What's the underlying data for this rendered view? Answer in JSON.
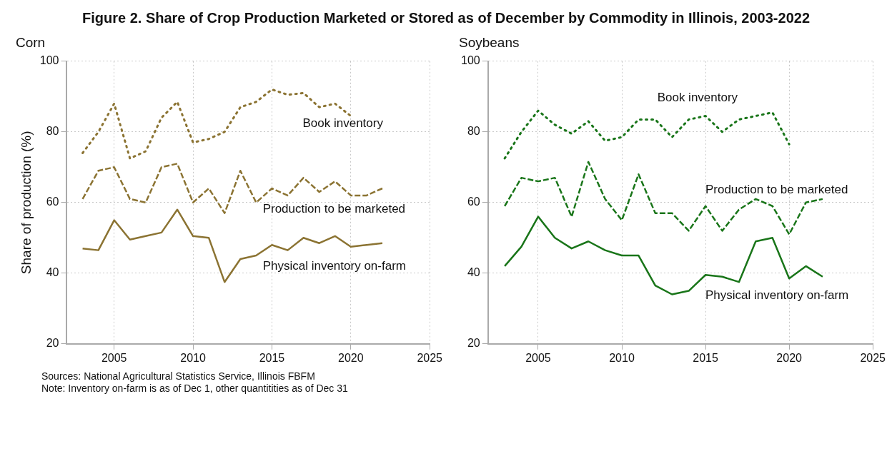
{
  "chart_data": [
    {
      "type": "other",
      "title": "Figure 2. Share of Crop Production Marketed or Stored as of December by Commodity in Illinois, 2003-2022"
    },
    {
      "type": "line",
      "title": "Corn",
      "ylabel": "Share of production (%)",
      "x": [
        2003,
        2004,
        2005,
        2006,
        2007,
        2008,
        2009,
        2010,
        2011,
        2012,
        2013,
        2014,
        2015,
        2016,
        2017,
        2018,
        2019,
        2020,
        2021,
        2022
      ],
      "series": [
        {
          "name": "Book inventory",
          "color": "#8b7332",
          "line_style": "dotted",
          "x": [
            2003,
            2004,
            2005,
            2006,
            2007,
            2008,
            2009,
            2010,
            2011,
            2012,
            2013,
            2014,
            2015,
            2016,
            2017,
            2018,
            2019,
            2020
          ],
          "values": [
            74,
            80,
            88,
            72.5,
            74.5,
            84,
            88.5,
            77,
            78,
            80,
            87,
            88.5,
            92,
            90.5,
            91,
            87,
            88,
            84.5
          ]
        },
        {
          "name": "Production to be marketed",
          "color": "#8b7332",
          "line_style": "dashed",
          "values": [
            61,
            69,
            70,
            61,
            60,
            70,
            71,
            60,
            64,
            57,
            69,
            60,
            64,
            62,
            67,
            63,
            66,
            62,
            62,
            64
          ]
        },
        {
          "name": "Physical inventory on-farm",
          "color": "#8b7332",
          "line_style": "solid",
          "values": [
            47,
            46.5,
            55,
            49.5,
            50.5,
            51.5,
            58,
            50.5,
            50,
            37.5,
            44,
            45,
            48,
            46.5,
            50,
            48.5,
            50.5,
            47.5,
            48,
            48.5
          ]
        }
      ],
      "xlim": [
        2002,
        2025
      ],
      "xticks": [
        2005,
        2010,
        2015,
        2020,
        2025
      ],
      "ylim": [
        20,
        100
      ],
      "yticks": [
        20,
        40,
        60,
        80,
        100
      ],
      "grid": true,
      "legend": false,
      "marker": "none"
    },
    {
      "type": "line",
      "title": "Soybeans",
      "x": [
        2003,
        2004,
        2005,
        2006,
        2007,
        2008,
        2009,
        2010,
        2011,
        2012,
        2013,
        2014,
        2015,
        2016,
        2017,
        2018,
        2019,
        2020,
        2021,
        2022
      ],
      "series": [
        {
          "name": "Book inventory",
          "color": "#197519",
          "line_style": "dotted",
          "x": [
            2003,
            2004,
            2005,
            2006,
            2007,
            2008,
            2009,
            2010,
            2011,
            2012,
            2013,
            2014,
            2015,
            2016,
            2017,
            2018,
            2019,
            2020
          ],
          "values": [
            72.5,
            80,
            86,
            82,
            79.5,
            83,
            77.5,
            78.5,
            83.5,
            83.5,
            78.5,
            83.5,
            84.5,
            80,
            83.5,
            84.5,
            85.5,
            76.5
          ]
        },
        {
          "name": "Production to be marketed",
          "color": "#197519",
          "line_style": "dashed",
          "values": [
            59,
            67,
            66,
            67,
            56,
            71.5,
            61,
            55,
            68,
            57,
            57,
            52,
            59,
            52,
            58,
            61,
            59,
            51,
            60,
            61
          ]
        },
        {
          "name": "Physical inventory on-farm",
          "color": "#197519",
          "line_style": "solid",
          "values": [
            42,
            47.5,
            56,
            50,
            47,
            49,
            46.5,
            45,
            45,
            36.5,
            34,
            35,
            39.5,
            39,
            37.5,
            49,
            50,
            38.5,
            42,
            39
          ]
        }
      ],
      "xlim": [
        2002,
        2025
      ],
      "xticks": [
        2005,
        2010,
        2015,
        2020,
        2025
      ],
      "ylim": [
        20,
        100
      ],
      "yticks": [
        20,
        40,
        60,
        80,
        100
      ],
      "grid": true,
      "legend": false,
      "marker": "none"
    },
    {
      "type": "other",
      "annotations": [
        "Sources: National Agricultural Statistics Service, Illinois FBFM",
        "Note: Inventory on-farm is as of Dec 1, other quantitities as of Dec 31"
      ]
    }
  ]
}
